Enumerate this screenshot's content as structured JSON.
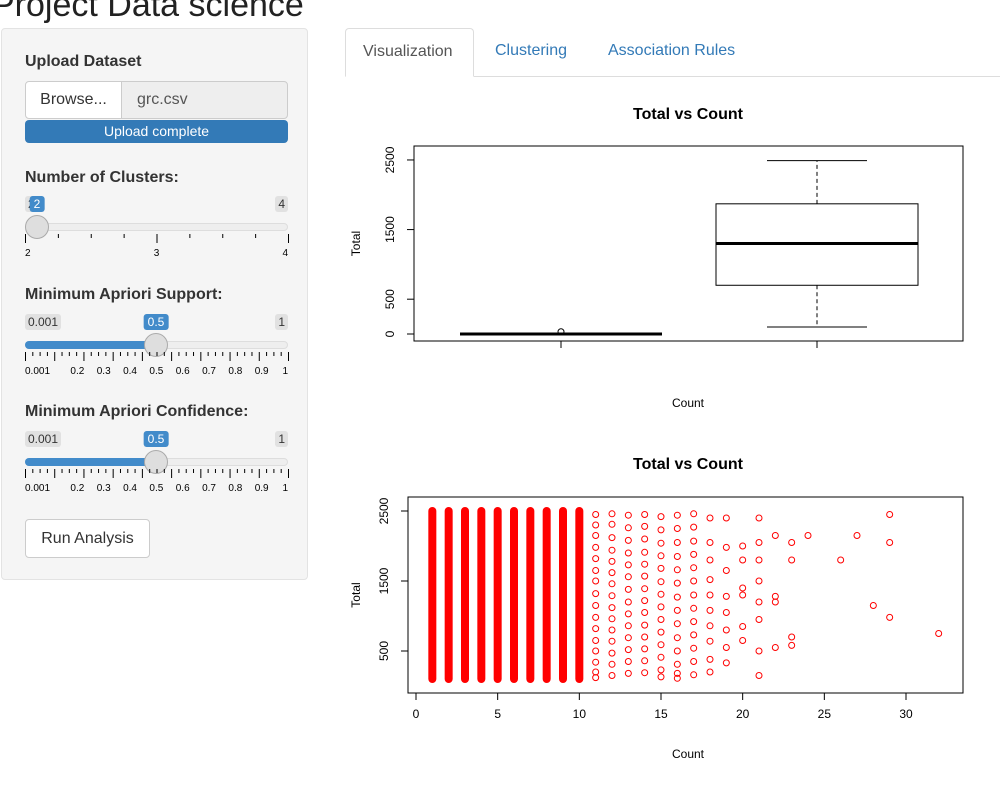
{
  "app": {
    "title": "Project Data science"
  },
  "sidebar": {
    "upload": {
      "label": "Upload Dataset",
      "browse_label": "Browse...",
      "file_name": "grc.csv",
      "progress_text": "Upload complete",
      "progress": 1.0
    },
    "clusters": {
      "label": "Number of Clusters:",
      "min": "2",
      "max": "4",
      "value": "2",
      "ticks": [
        "2",
        "3",
        "4"
      ]
    },
    "support": {
      "label": "Minimum Apriori Support:",
      "min": "0.001",
      "max": "1",
      "value": "0.5",
      "ticks": [
        "0.001",
        "0.2",
        "0.3",
        "0.4",
        "0.5",
        "0.6",
        "0.7",
        "0.8",
        "0.9",
        "1"
      ]
    },
    "confidence": {
      "label": "Minimum Apriori Confidence:",
      "min": "0.001",
      "max": "1",
      "value": "0.5",
      "ticks": [
        "0.001",
        "0.2",
        "0.3",
        "0.4",
        "0.5",
        "0.6",
        "0.7",
        "0.8",
        "0.9",
        "1"
      ]
    },
    "run_label": "Run Analysis"
  },
  "tabs": [
    {
      "label": "Visualization",
      "active": true
    },
    {
      "label": "Clustering",
      "active": false
    },
    {
      "label": "Association Rules",
      "active": false
    }
  ],
  "colors": {
    "accent": "#337ab7",
    "slider": "#428bca",
    "points": "#ff0000"
  },
  "chart_data": [
    {
      "type": "box",
      "title": "Total vs Count",
      "xlabel": "Count",
      "ylabel": "Total",
      "yticks": [
        "0",
        "500",
        "1500",
        "2500"
      ],
      "ylim": [
        0,
        2600
      ],
      "boxes": [
        {
          "min": 0,
          "q1": 0,
          "median": 0,
          "q3": 0,
          "max": 0,
          "outliers": [
            32
          ]
        },
        {
          "min": 100,
          "q1": 700,
          "median": 1300,
          "q3": 1870,
          "max": 2490,
          "outliers": []
        }
      ]
    },
    {
      "type": "scatter",
      "title": "Total vs Count",
      "xlabel": "Count",
      "ylabel": "Total",
      "xticks": [
        "0",
        "5",
        "10",
        "15",
        "20",
        "25",
        "30"
      ],
      "yticks": [
        "500",
        "1500",
        "2500"
      ],
      "xlim": [
        0,
        33
      ],
      "ylim": [
        0,
        2600
      ],
      "dense_x": [
        1,
        2,
        3,
        4,
        5,
        6,
        7,
        8,
        9,
        10
      ],
      "dense_y_range": [
        100,
        2500
      ],
      "points": [
        [
          11,
          2450
        ],
        [
          11,
          2300
        ],
        [
          11,
          2150
        ],
        [
          11,
          1980
        ],
        [
          11,
          1820
        ],
        [
          11,
          1650
        ],
        [
          11,
          1500
        ],
        [
          11,
          1320
        ],
        [
          11,
          1150
        ],
        [
          11,
          980
        ],
        [
          11,
          820
        ],
        [
          11,
          650
        ],
        [
          11,
          500
        ],
        [
          11,
          340
        ],
        [
          11,
          200
        ],
        [
          11,
          120
        ],
        [
          12,
          2460
        ],
        [
          12,
          2310
        ],
        [
          12,
          2120
        ],
        [
          12,
          1940
        ],
        [
          12,
          1780
        ],
        [
          12,
          1620
        ],
        [
          12,
          1460
        ],
        [
          12,
          1290
        ],
        [
          12,
          1120
        ],
        [
          12,
          960
        ],
        [
          12,
          800
        ],
        [
          12,
          640
        ],
        [
          12,
          470
        ],
        [
          12,
          310
        ],
        [
          12,
          150
        ],
        [
          13,
          2440
        ],
        [
          13,
          2260
        ],
        [
          13,
          2080
        ],
        [
          13,
          1900
        ],
        [
          13,
          1730
        ],
        [
          13,
          1560
        ],
        [
          13,
          1380
        ],
        [
          13,
          1200
        ],
        [
          13,
          1030
        ],
        [
          13,
          860
        ],
        [
          13,
          690
        ],
        [
          13,
          520
        ],
        [
          13,
          350
        ],
        [
          13,
          180
        ],
        [
          14,
          2450
        ],
        [
          14,
          2280
        ],
        [
          14,
          2100
        ],
        [
          14,
          1910
        ],
        [
          14,
          1740
        ],
        [
          14,
          1570
        ],
        [
          14,
          1390
        ],
        [
          14,
          1220
        ],
        [
          14,
          1050
        ],
        [
          14,
          870
        ],
        [
          14,
          700
        ],
        [
          14,
          530
        ],
        [
          14,
          360
        ],
        [
          14,
          190
        ],
        [
          15,
          2420
        ],
        [
          15,
          2230
        ],
        [
          15,
          2040
        ],
        [
          15,
          1860
        ],
        [
          15,
          1680
        ],
        [
          15,
          1490
        ],
        [
          15,
          1310
        ],
        [
          15,
          1130
        ],
        [
          15,
          950
        ],
        [
          15,
          770
        ],
        [
          15,
          590
        ],
        [
          15,
          410
        ],
        [
          15,
          230
        ],
        [
          15,
          130
        ],
        [
          16,
          2440
        ],
        [
          16,
          2250
        ],
        [
          16,
          2050
        ],
        [
          16,
          1850
        ],
        [
          16,
          1660
        ],
        [
          16,
          1470
        ],
        [
          16,
          1270
        ],
        [
          16,
          1080
        ],
        [
          16,
          890
        ],
        [
          16,
          690
        ],
        [
          16,
          500
        ],
        [
          16,
          310
        ],
        [
          16,
          180
        ],
        [
          16,
          110
        ],
        [
          17,
          2460
        ],
        [
          17,
          2270
        ],
        [
          17,
          2070
        ],
        [
          17,
          1880
        ],
        [
          17,
          1690
        ],
        [
          17,
          1500
        ],
        [
          17,
          1300
        ],
        [
          17,
          1110
        ],
        [
          17,
          920
        ],
        [
          17,
          730
        ],
        [
          17,
          540
        ],
        [
          17,
          350
        ],
        [
          17,
          160
        ],
        [
          18,
          2400
        ],
        [
          18,
          2050
        ],
        [
          18,
          1800
        ],
        [
          18,
          1520
        ],
        [
          18,
          1300
        ],
        [
          18,
          1080
        ],
        [
          18,
          860
        ],
        [
          18,
          640
        ],
        [
          18,
          380
        ],
        [
          18,
          200
        ],
        [
          19,
          2400
        ],
        [
          19,
          1980
        ],
        [
          19,
          1650
        ],
        [
          19,
          1280
        ],
        [
          19,
          1050
        ],
        [
          19,
          800
        ],
        [
          19,
          550
        ],
        [
          19,
          330
        ],
        [
          20,
          2000
        ],
        [
          20,
          1800
        ],
        [
          20,
          1400
        ],
        [
          20,
          1300
        ],
        [
          20,
          850
        ],
        [
          20,
          650
        ],
        [
          21,
          2400
        ],
        [
          21,
          2050
        ],
        [
          21,
          1800
        ],
        [
          21,
          1500
        ],
        [
          21,
          1200
        ],
        [
          21,
          950
        ],
        [
          21,
          500
        ],
        [
          21,
          150
        ],
        [
          22,
          2150
        ],
        [
          22,
          1280
        ],
        [
          22,
          1200
        ],
        [
          22,
          550
        ],
        [
          23,
          2050
        ],
        [
          23,
          1800
        ],
        [
          23,
          700
        ],
        [
          23,
          580
        ],
        [
          24,
          2150
        ],
        [
          26,
          1800
        ],
        [
          27,
          2150
        ],
        [
          28,
          1150
        ],
        [
          29,
          2450
        ],
        [
          29,
          2050
        ],
        [
          29,
          980
        ],
        [
          32,
          750
        ]
      ]
    }
  ]
}
